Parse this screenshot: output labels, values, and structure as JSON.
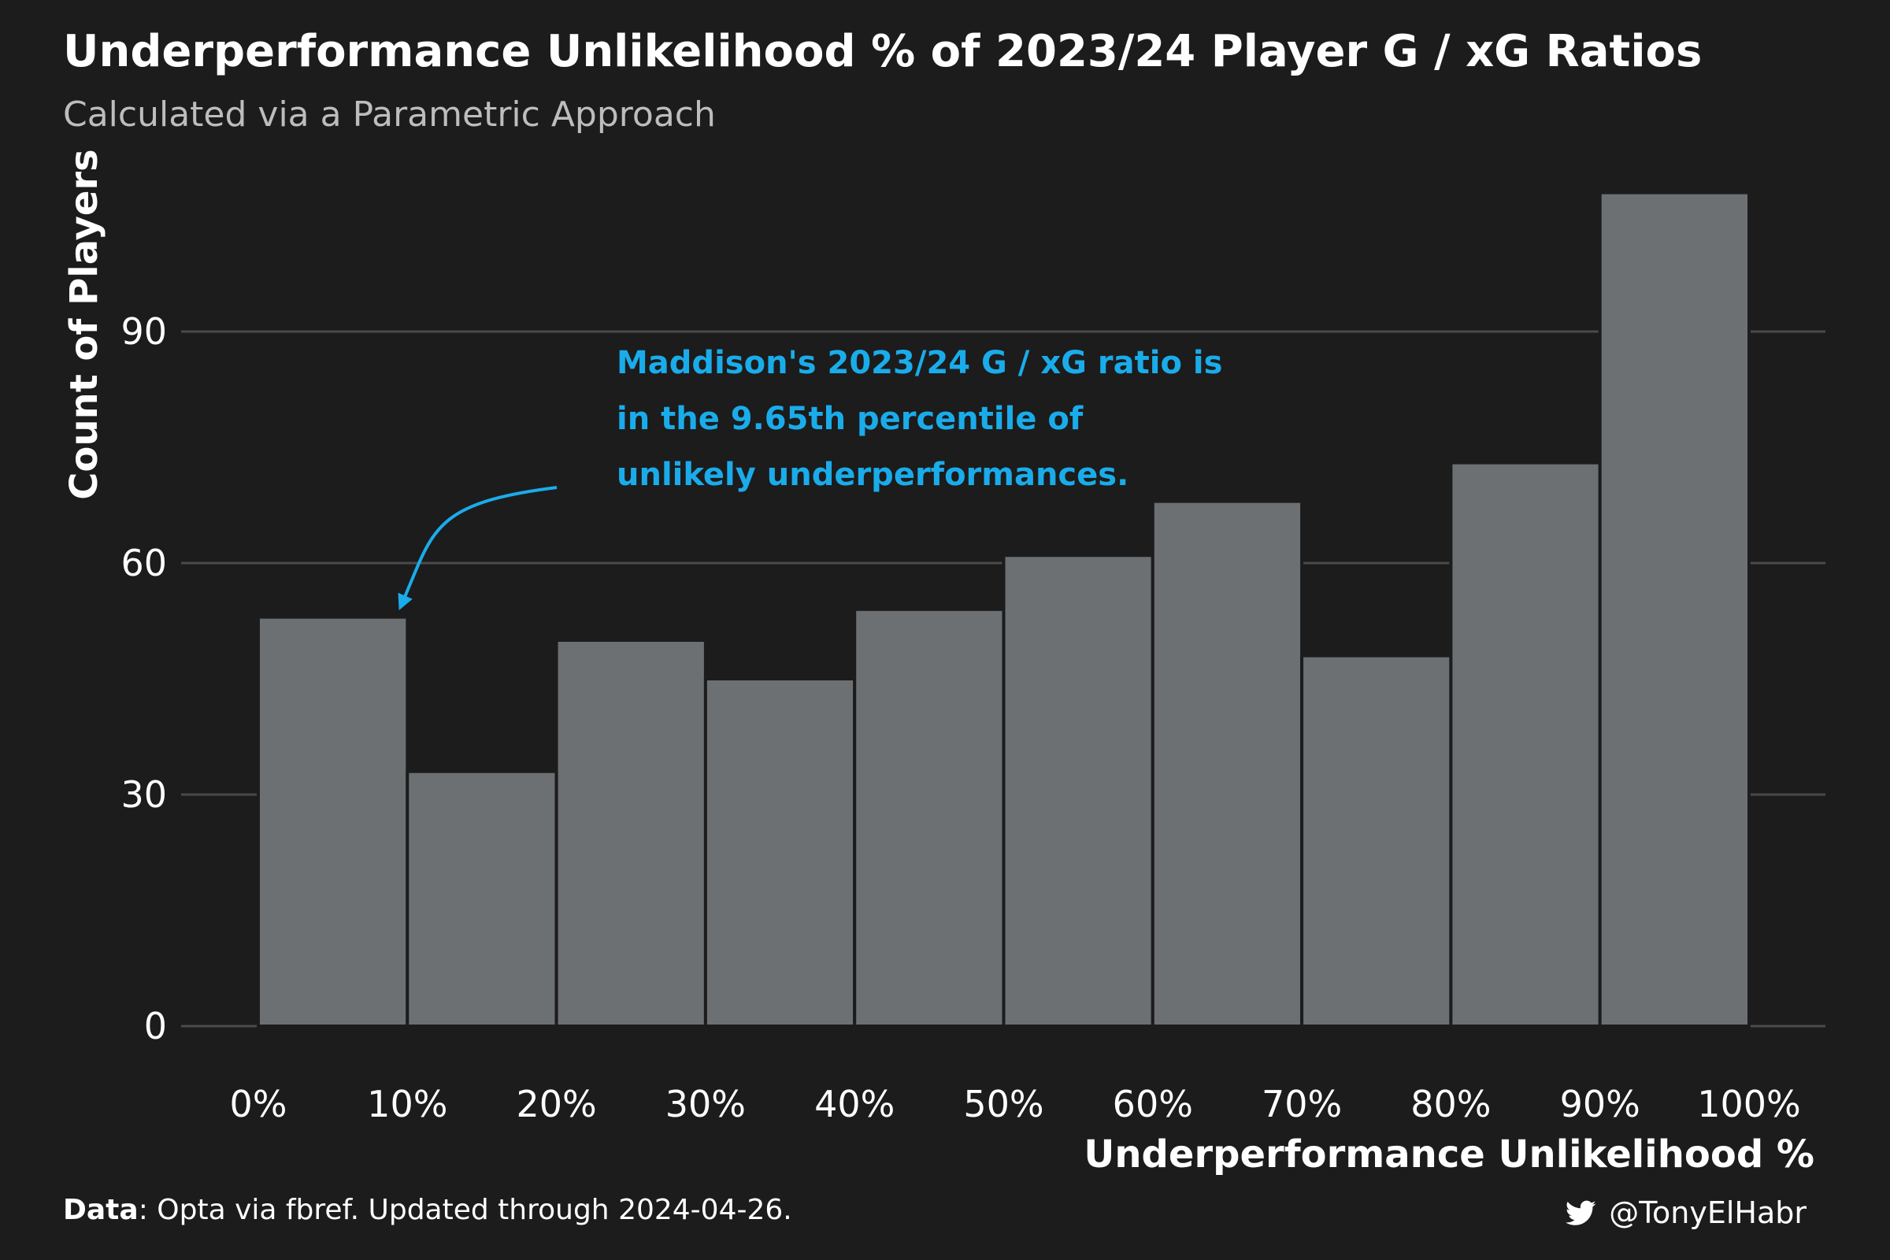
{
  "chart_data": {
    "type": "bar",
    "title": "Underperformance Unlikelihood % of 2023/24 Player G / xG Ratios",
    "subtitle": "Calculated via a Parametric Approach",
    "xlabel": "Underperformance Unlikelihood %",
    "ylabel": "Count of Players",
    "bins": [
      {
        "start": 0,
        "end": 10,
        "value": 53
      },
      {
        "start": 10,
        "end": 20,
        "value": 33
      },
      {
        "start": 20,
        "end": 30,
        "value": 50
      },
      {
        "start": 30,
        "end": 40,
        "value": 45
      },
      {
        "start": 40,
        "end": 50,
        "value": 54
      },
      {
        "start": 50,
        "end": 60,
        "value": 61
      },
      {
        "start": 60,
        "end": 70,
        "value": 68
      },
      {
        "start": 70,
        "end": 80,
        "value": 48
      },
      {
        "start": 80,
        "end": 90,
        "value": 73
      },
      {
        "start": 90,
        "end": 100,
        "value": 108
      }
    ],
    "values": [
      53,
      33,
      50,
      45,
      54,
      61,
      68,
      48,
      73,
      108
    ],
    "xlim": [
      0,
      100
    ],
    "ylim": [
      0,
      110
    ],
    "x_ticks": [
      "0%",
      "10%",
      "20%",
      "30%",
      "40%",
      "50%",
      "60%",
      "70%",
      "80%",
      "90%",
      "100%"
    ],
    "y_ticks": [
      "0",
      "30",
      "60",
      "90"
    ],
    "grid": true,
    "legend": "none",
    "annotation": {
      "lines": [
        "Maddison's 2023/24 G / xG ratio is",
        "in the 9.65th percentile of",
        "unlikely underperformances."
      ],
      "target_x": 9.65,
      "target_y": 54
    },
    "colors": {
      "background": "#1c1c1c",
      "bar_fill": "#6d7073",
      "bar_stroke": "#1c1c1c",
      "gridline": "#4a4a4a",
      "annotation": "#1aacea",
      "text": "#ffffff",
      "subtitle": "#bdbdbd"
    }
  },
  "caption": {
    "data_label": "Data",
    "data_text": ": Opta via fbref. Updated through 2024-04-26."
  },
  "handle": {
    "icon": "twitter-bird-icon",
    "text": "@TonyElHabr"
  }
}
